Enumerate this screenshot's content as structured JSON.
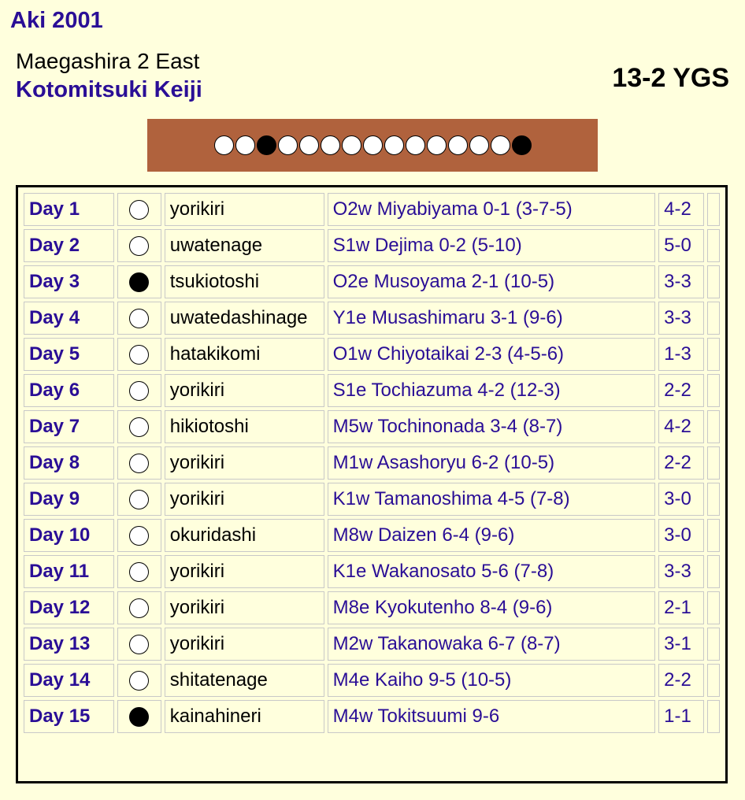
{
  "header": {
    "basho": "Aki 2001",
    "rank": "Maegashira 2 East",
    "name": "Kotomitsuki Keiji",
    "record": "13-2 YGS"
  },
  "stars": [
    "win",
    "win",
    "loss",
    "win",
    "win",
    "win",
    "win",
    "win",
    "win",
    "win",
    "win",
    "win",
    "win",
    "win",
    "loss"
  ],
  "bouts": [
    {
      "day": "Day 1",
      "result": "win",
      "kimarite": "yorikiri",
      "opponent": "O2w Miyabiyama 0-1 (3-7-5)",
      "h2h": "4-2"
    },
    {
      "day": "Day 2",
      "result": "win",
      "kimarite": "uwatenage",
      "opponent": "S1w Dejima 0-2 (5-10)",
      "h2h": "5-0"
    },
    {
      "day": "Day 3",
      "result": "loss",
      "kimarite": "tsukiotoshi",
      "opponent": "O2e Musoyama 2-1 (10-5)",
      "h2h": "3-3"
    },
    {
      "day": "Day 4",
      "result": "win",
      "kimarite": "uwatedashinage",
      "opponent": "Y1e Musashimaru 3-1 (9-6)",
      "h2h": "3-3"
    },
    {
      "day": "Day 5",
      "result": "win",
      "kimarite": "hatakikomi",
      "opponent": "O1w Chiyotaikai 2-3 (4-5-6)",
      "h2h": "1-3"
    },
    {
      "day": "Day 6",
      "result": "win",
      "kimarite": "yorikiri",
      "opponent": "S1e Tochiazuma 4-2 (12-3)",
      "h2h": "2-2"
    },
    {
      "day": "Day 7",
      "result": "win",
      "kimarite": "hikiotoshi",
      "opponent": "M5w Tochinonada 3-4 (8-7)",
      "h2h": "4-2"
    },
    {
      "day": "Day 8",
      "result": "win",
      "kimarite": "yorikiri",
      "opponent": "M1w Asashoryu 6-2 (10-5)",
      "h2h": "2-2"
    },
    {
      "day": "Day 9",
      "result": "win",
      "kimarite": "yorikiri",
      "opponent": "K1w Tamanoshima 4-5 (7-8)",
      "h2h": "3-0"
    },
    {
      "day": "Day 10",
      "result": "win",
      "kimarite": "okuridashi",
      "opponent": "M8w Daizen 6-4 (9-6)",
      "h2h": "3-0"
    },
    {
      "day": "Day 11",
      "result": "win",
      "kimarite": "yorikiri",
      "opponent": "K1e Wakanosato 5-6 (7-8)",
      "h2h": "3-3"
    },
    {
      "day": "Day 12",
      "result": "win",
      "kimarite": "yorikiri",
      "opponent": "M8e Kyokutenho 8-4 (9-6)",
      "h2h": "2-1"
    },
    {
      "day": "Day 13",
      "result": "win",
      "kimarite": "yorikiri",
      "opponent": "M2w Takanowaka 6-7 (8-7)",
      "h2h": "3-1"
    },
    {
      "day": "Day 14",
      "result": "win",
      "kimarite": "shitatenage",
      "opponent": "M4e Kaiho 9-5 (10-5)",
      "h2h": "2-2"
    },
    {
      "day": "Day 15",
      "result": "loss",
      "kimarite": "kainahineri",
      "opponent": "M4w Tokitsuumi 9-6",
      "h2h": "1-1"
    }
  ]
}
